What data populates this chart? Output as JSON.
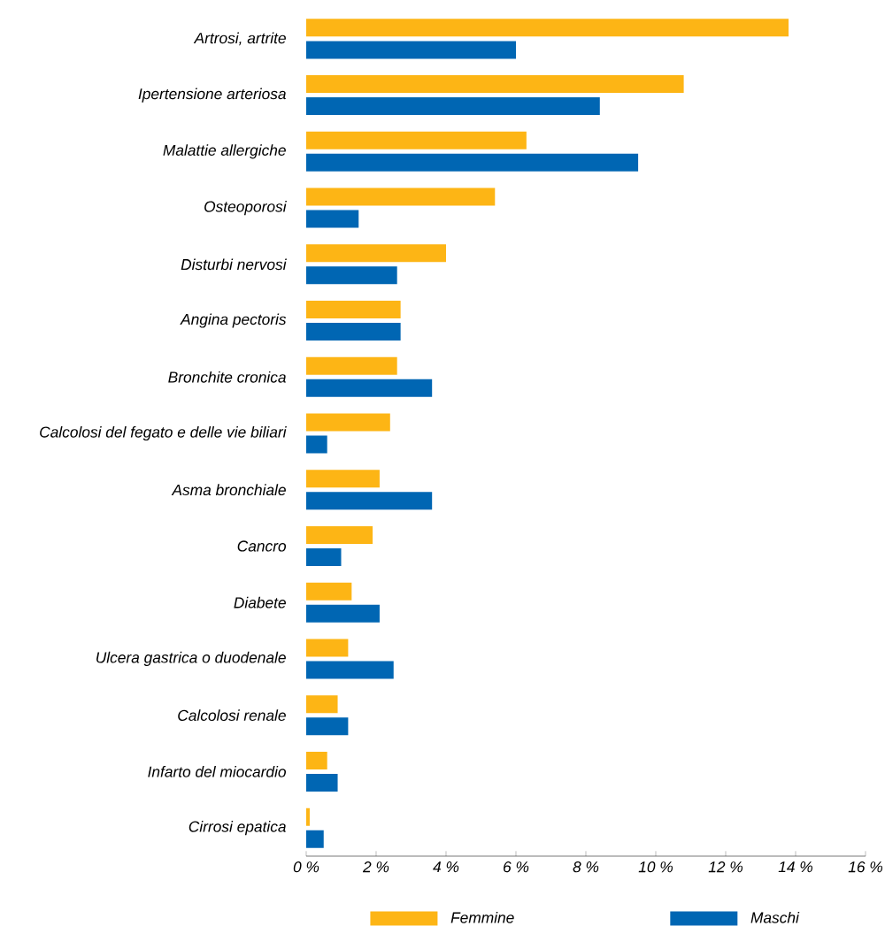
{
  "chart_data": {
    "type": "bar",
    "orientation": "horizontal",
    "legend": "bottom",
    "categories": [
      "Artrosi, artrite",
      "Ipertensione arteriosa",
      "Malattie allergiche",
      "Osteoporosi",
      "Disturbi nervosi",
      "Angina pectoris",
      "Bronchite cronica",
      "Calcolosi del fegato e delle vie biliari",
      "Asma bronchiale",
      "Cancro",
      "Diabete",
      "Ulcera gastrica o duodenale",
      "Calcolosi renale",
      "Infarto del miocardio",
      "Cirrosi epatica"
    ],
    "series": [
      {
        "name": "Femmine",
        "color": "#fdb515",
        "values": [
          13.8,
          10.8,
          6.3,
          5.4,
          4.0,
          2.7,
          2.6,
          2.4,
          2.1,
          1.9,
          1.3,
          1.2,
          0.9,
          0.6,
          0.1
        ]
      },
      {
        "name": "Maschi",
        "color": "#0066b3",
        "values": [
          6.0,
          8.4,
          9.5,
          1.5,
          2.6,
          2.7,
          3.6,
          0.6,
          3.6,
          1.0,
          2.1,
          2.5,
          1.2,
          0.9,
          0.5
        ]
      }
    ],
    "xlim": [
      0,
      16
    ],
    "xticks": [
      {
        "value": 0,
        "label": "0 %"
      },
      {
        "value": 2,
        "label": "2 %"
      },
      {
        "value": 4,
        "label": "4 %"
      },
      {
        "value": 6,
        "label": "6 %"
      },
      {
        "value": 8,
        "label": "8 %"
      },
      {
        "value": 10,
        "label": "10 %"
      },
      {
        "value": 12,
        "label": "12 %"
      },
      {
        "value": 14,
        "label": "14 %"
      },
      {
        "value": 16,
        "label": "16 %"
      }
    ]
  }
}
